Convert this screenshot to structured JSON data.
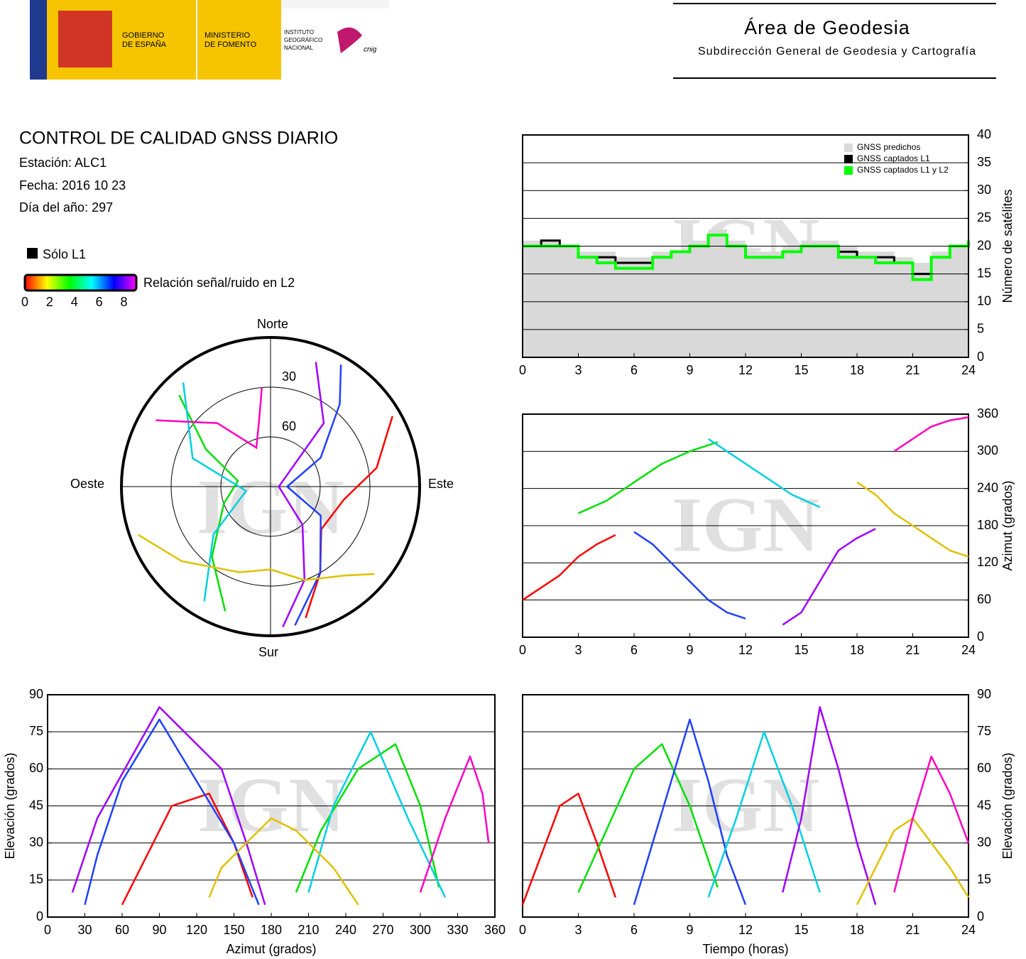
{
  "header": {
    "gov_lines": [
      "GOBIERNO",
      "DE ESPAÑA"
    ],
    "ministry_lines": [
      "MINISTERIO",
      "DE FOMENTO"
    ],
    "institute_lines": [
      "INSTITUTO",
      "GEOGRÁFICO",
      "NACIONAL"
    ],
    "cnig": "cnig",
    "area": "Área de Geodesia",
    "subtitle": "Subdirección General de Geodesia y Cartografía"
  },
  "info": {
    "title": "CONTROL DE CALIDAD GNSS DIARIO",
    "station": "Estación: ALC1",
    "date": "Fecha: 2016 10 23",
    "doy": "Día del año: 297"
  },
  "legend": {
    "l1": "Sólo L1",
    "l1_color": "#000000",
    "snr": "Relación señal/ruido en L2",
    "lim": [
      0,
      9
    ],
    "ticks": [
      0,
      2,
      4,
      6,
      8
    ],
    "colormap": [
      "#ff0000",
      "#ffff00",
      "#00ff00",
      "#00ffff",
      "#0000ff",
      "#ff00ff"
    ]
  },
  "watermark": "IGN",
  "chart_data": [
    {
      "type": "step",
      "ylabel": "Número de satélites",
      "xlim": [
        0,
        24
      ],
      "xticks": [
        0,
        3,
        6,
        9,
        12,
        15,
        18,
        21,
        24
      ],
      "ylim": [
        0,
        40
      ],
      "yticks": [
        0,
        5,
        10,
        15,
        20,
        25,
        30,
        35,
        40
      ],
      "grid": true,
      "legend": "upper right",
      "x": [
        0,
        1,
        2,
        3,
        4,
        5,
        6,
        7,
        8,
        9,
        10,
        11,
        12,
        13,
        14,
        15,
        16,
        17,
        18,
        19,
        20,
        21,
        22,
        23,
        24
      ],
      "series": [
        {
          "name": "GNSS predichos",
          "color": "#d9d9d9",
          "style": "area",
          "values": [
            21,
            21,
            20,
            19,
            19,
            18,
            18,
            19,
            19,
            21,
            23,
            21,
            19,
            19,
            20,
            21,
            21,
            20,
            19,
            19,
            18,
            17,
            19,
            20,
            21
          ]
        },
        {
          "name": "GNSS captados L1",
          "color": "#000000",
          "style": "line",
          "values": [
            20,
            21,
            20,
            18,
            18,
            17,
            17,
            18,
            19,
            20,
            22,
            20,
            18,
            18,
            19,
            20,
            20,
            19,
            18,
            18,
            17,
            15,
            18,
            20,
            21
          ]
        },
        {
          "name": "GNSS captados L1 y L2",
          "color": "#00ff00",
          "style": "line",
          "values": [
            20,
            20,
            20,
            18,
            17,
            16,
            16,
            18,
            19,
            20,
            22,
            20,
            18,
            18,
            19,
            20,
            20,
            18,
            18,
            17,
            17,
            14,
            18,
            20,
            21
          ]
        }
      ]
    },
    {
      "type": "polar",
      "north": "Norte",
      "south": "Sur",
      "east": "Este",
      "west": "Oeste",
      "rlim": [
        90,
        0
      ],
      "rticks": [
        30,
        60
      ],
      "series": [
        {
          "color": "#ff0000",
          "azimuth": [
            60,
            80,
            100,
            130,
            150,
            165
          ],
          "elevation": [
            5,
            25,
            45,
            50,
            30,
            8
          ]
        },
        {
          "color": "#00e000",
          "azimuth": [
            200,
            220,
            250,
            280,
            300,
            315
          ],
          "elevation": [
            10,
            35,
            60,
            70,
            45,
            12
          ]
        },
        {
          "color": "#2040ff",
          "azimuth": [
            170,
            150,
            120,
            90,
            60,
            40,
            30
          ],
          "elevation": [
            5,
            30,
            55,
            80,
            55,
            25,
            5
          ]
        },
        {
          "color": "#00d0e0",
          "azimuth": [
            320,
            290,
            260,
            230,
            210
          ],
          "elevation": [
            8,
            40,
            75,
            45,
            10
          ]
        },
        {
          "color": "#a000ff",
          "azimuth": [
            20,
            40,
            90,
            140,
            160,
            175
          ],
          "elevation": [
            10,
            40,
            85,
            60,
            30,
            5
          ]
        },
        {
          "color": "#e0c000",
          "azimuth": [
            250,
            230,
            200,
            180,
            160,
            140,
            130
          ],
          "elevation": [
            5,
            20,
            35,
            40,
            30,
            20,
            8
          ]
        },
        {
          "color": "#ff00c0",
          "azimuth": [
            300,
            320,
            340,
            350,
            355
          ],
          "elevation": [
            10,
            40,
            65,
            50,
            30
          ]
        }
      ]
    },
    {
      "type": "line",
      "axis_side": "right",
      "ylabel": "Azimut (grados)",
      "xlim": [
        0,
        24
      ],
      "xticks": [
        0,
        3,
        6,
        9,
        12,
        15,
        18,
        21,
        24
      ],
      "ylim": [
        0,
        360
      ],
      "yticks": [
        0,
        60,
        120,
        180,
        240,
        300,
        360
      ],
      "grid": true,
      "series": [
        {
          "color": "#ff0000",
          "x": [
            0,
            1,
            2,
            3,
            4,
            5
          ],
          "values": [
            60,
            80,
            100,
            130,
            150,
            165
          ]
        },
        {
          "color": "#00e000",
          "x": [
            3,
            4.5,
            6,
            7.5,
            9,
            10.5
          ],
          "values": [
            200,
            220,
            250,
            280,
            300,
            315
          ]
        },
        {
          "color": "#2040ff",
          "x": [
            6,
            7,
            8,
            9,
            10,
            11,
            12
          ],
          "values": [
            170,
            150,
            120,
            90,
            60,
            40,
            30
          ]
        },
        {
          "color": "#00d0e0",
          "x": [
            10,
            11.5,
            13,
            14.5,
            16
          ],
          "values": [
            320,
            290,
            260,
            230,
            210
          ]
        },
        {
          "color": "#a000ff",
          "x": [
            14,
            15,
            16,
            17,
            18,
            19
          ],
          "values": [
            20,
            40,
            90,
            140,
            160,
            175
          ]
        },
        {
          "color": "#e0c000",
          "x": [
            18,
            19,
            20,
            21,
            22,
            23,
            24
          ],
          "values": [
            250,
            230,
            200,
            180,
            160,
            140,
            130
          ]
        },
        {
          "color": "#ff00c0",
          "x": [
            20,
            21,
            22,
            23,
            24
          ],
          "values": [
            300,
            320,
            340,
            350,
            355
          ]
        }
      ]
    },
    {
      "type": "line",
      "axis_side": "left",
      "xlabel": "Azimut (grados)",
      "ylabel": "Elevación (grados)",
      "xlim": [
        0,
        360
      ],
      "xticks": [
        0,
        30,
        60,
        90,
        120,
        150,
        180,
        210,
        240,
        270,
        300,
        330,
        360
      ],
      "ylim": [
        0,
        90
      ],
      "yticks": [
        0,
        15,
        30,
        45,
        60,
        75,
        90
      ],
      "grid": true,
      "series": [
        {
          "color": "#ff0000",
          "x": [
            60,
            80,
            100,
            130,
            150,
            165
          ],
          "values": [
            5,
            25,
            45,
            50,
            30,
            8
          ]
        },
        {
          "color": "#00e000",
          "x": [
            200,
            220,
            250,
            280,
            300,
            315
          ],
          "values": [
            10,
            35,
            60,
            70,
            45,
            12
          ]
        },
        {
          "color": "#2040ff",
          "x": [
            170,
            150,
            120,
            90,
            60,
            40,
            30
          ],
          "values": [
            5,
            30,
            55,
            80,
            55,
            25,
            5
          ]
        },
        {
          "color": "#00d0e0",
          "x": [
            320,
            290,
            260,
            230,
            210
          ],
          "values": [
            8,
            40,
            75,
            45,
            10
          ]
        },
        {
          "color": "#a000ff",
          "x": [
            20,
            40,
            90,
            140,
            160,
            175
          ],
          "values": [
            10,
            40,
            85,
            60,
            30,
            5
          ]
        },
        {
          "color": "#e0c000",
          "x": [
            250,
            230,
            200,
            180,
            160,
            140,
            130
          ],
          "values": [
            5,
            20,
            35,
            40,
            30,
            20,
            8
          ]
        },
        {
          "color": "#ff00c0",
          "x": [
            300,
            320,
            340,
            350,
            355
          ],
          "values": [
            10,
            40,
            65,
            50,
            30
          ]
        }
      ]
    },
    {
      "type": "line",
      "axis_side": "right",
      "xlabel": "Tiempo (horas)",
      "ylabel": "Elevación (grados)",
      "xlim": [
        0,
        24
      ],
      "xticks": [
        0,
        3,
        6,
        9,
        12,
        15,
        18,
        21,
        24
      ],
      "ylim": [
        0,
        90
      ],
      "yticks": [
        0,
        15,
        30,
        45,
        60,
        75,
        90
      ],
      "grid": true,
      "series": [
        {
          "color": "#ff0000",
          "x": [
            0,
            1,
            2,
            3,
            4,
            5
          ],
          "values": [
            5,
            25,
            45,
            50,
            30,
            8
          ]
        },
        {
          "color": "#00e000",
          "x": [
            3,
            4.5,
            6,
            7.5,
            9,
            10.5
          ],
          "values": [
            10,
            35,
            60,
            70,
            45,
            12
          ]
        },
        {
          "color": "#2040ff",
          "x": [
            6,
            7,
            8,
            9,
            10,
            11,
            12
          ],
          "values": [
            5,
            30,
            55,
            80,
            55,
            25,
            5
          ]
        },
        {
          "color": "#00d0e0",
          "x": [
            10,
            11.5,
            13,
            14.5,
            16
          ],
          "values": [
            8,
            40,
            75,
            45,
            10
          ]
        },
        {
          "color": "#a000ff",
          "x": [
            14,
            15,
            16,
            17,
            18,
            19
          ],
          "values": [
            10,
            40,
            85,
            60,
            30,
            5
          ]
        },
        {
          "color": "#e0c000",
          "x": [
            18,
            19,
            20,
            21,
            22,
            23,
            24
          ],
          "values": [
            5,
            20,
            35,
            40,
            30,
            20,
            8
          ]
        },
        {
          "color": "#ff00c0",
          "x": [
            20,
            21,
            22,
            23,
            24
          ],
          "values": [
            10,
            40,
            65,
            50,
            30
          ]
        }
      ]
    }
  ]
}
